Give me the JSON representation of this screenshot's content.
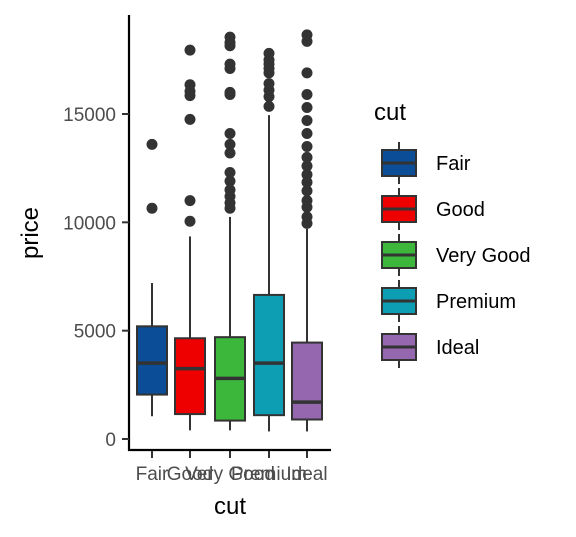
{
  "chart_data": {
    "type": "boxplot",
    "xlabel": "cut",
    "ylabel": "price",
    "ylim": [
      -500,
      19500
    ],
    "y_ticks": [
      0,
      5000,
      10000,
      15000
    ],
    "categories": [
      "Fair",
      "Good",
      "Very Good",
      "Premium",
      "Ideal"
    ],
    "boxes": [
      {
        "category": "Fair",
        "q1": 2050,
        "median": 3500,
        "q3": 5200,
        "whisker_low": 1050,
        "whisker_high": 7200,
        "outliers": [
          10650,
          13600
        ],
        "color": "#0b4d96"
      },
      {
        "category": "Good",
        "q1": 1150,
        "median": 3250,
        "q3": 4650,
        "whisker_low": 400,
        "whisker_high": 9350,
        "outliers": [
          10050,
          11000,
          14750,
          15850,
          16050,
          16350,
          17950
        ],
        "color": "#ee0000"
      },
      {
        "category": "Very Good",
        "q1": 850,
        "median": 2800,
        "q3": 4700,
        "whisker_low": 400,
        "whisker_high": 10250,
        "outliers": [
          10650,
          10900,
          11200,
          11500,
          11900,
          12300,
          13200,
          13600,
          14100,
          15900,
          16000,
          17100,
          17300,
          18150,
          18300,
          18550
        ],
        "color": "#3cb73c"
      },
      {
        "category": "Premium",
        "q1": 1100,
        "median": 3500,
        "q3": 6650,
        "whisker_low": 350,
        "whisker_high": 14950,
        "outliers": [
          15350,
          15800,
          16100,
          16400,
          16900,
          17100,
          17300,
          17500,
          17800
        ],
        "color": "#0e9eb4"
      },
      {
        "category": "Ideal",
        "q1": 900,
        "median": 1700,
        "q3": 4450,
        "whisker_low": 350,
        "whisker_high": 9700,
        "outliers": [
          9950,
          10250,
          10700,
          11000,
          11450,
          11850,
          12200,
          12600,
          13000,
          13500,
          14100,
          14700,
          15300,
          15900,
          16900,
          18350,
          18650
        ],
        "color": "#9467ae"
      }
    ],
    "legend": {
      "title": "cut",
      "position": "right",
      "items": [
        {
          "label": "Fair",
          "color": "#0b4d96"
        },
        {
          "label": "Good",
          "color": "#ee0000"
        },
        {
          "label": "Very Good",
          "color": "#3cb73c"
        },
        {
          "label": "Premium",
          "color": "#0e9eb4"
        },
        {
          "label": "Ideal",
          "color": "#9467ae"
        }
      ]
    },
    "grid": false
  }
}
